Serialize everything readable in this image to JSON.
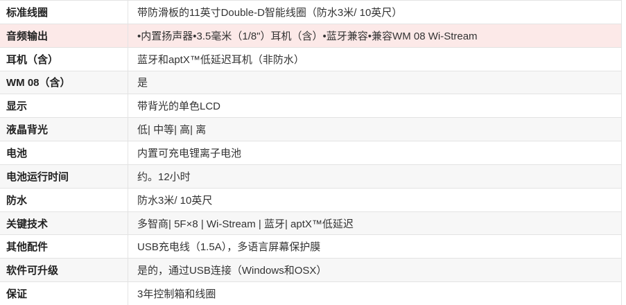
{
  "table": {
    "colors": {
      "highlight_bg": "#fce9e8",
      "stripe_bg": "#f7f7f7",
      "border": "#e3e3e3",
      "label_text": "#222222",
      "value_text": "#333333"
    },
    "rows": [
      {
        "label": "标准线圈",
        "value": "带防滑板的11英寸Double-D智能线圈（防水3米/ 10英尺）",
        "highlighted": false
      },
      {
        "label": "音频输出",
        "value": "•内置扬声器•3.5毫米（1/8\"）耳机（含）•蓝牙兼容•兼容WM 08 Wi-Stream",
        "highlighted": true
      },
      {
        "label": "耳机（含）",
        "value": "蓝牙和aptX™低延迟耳机（非防水）",
        "highlighted": false
      },
      {
        "label": "WM 08（含）",
        "value": "是",
        "highlighted": false
      },
      {
        "label": "显示",
        "value": "带背光的单色LCD",
        "highlighted": false
      },
      {
        "label": "液晶背光",
        "value": "低| 中等| 高| 离",
        "highlighted": false
      },
      {
        "label": "电池",
        "value": "内置可充电锂离子电池",
        "highlighted": false
      },
      {
        "label": "电池运行时间",
        "value": "约。12小时",
        "highlighted": false
      },
      {
        "label": "防水",
        "value": "防水3米/ 10英尺",
        "highlighted": false
      },
      {
        "label": "关键技术",
        "value": "多智商| 5F×8 | Wi-Stream | 蓝牙| aptX™低延迟",
        "highlighted": false
      },
      {
        "label": "其他配件",
        "value": "USB充电线（1.5A），多语言屏幕保护膜",
        "highlighted": false
      },
      {
        "label": "软件可升级",
        "value": "是的，通过USB连接（Windows和OSX）",
        "highlighted": false
      },
      {
        "label": "保证",
        "value": "3年控制箱和线圈",
        "highlighted": false
      }
    ]
  }
}
